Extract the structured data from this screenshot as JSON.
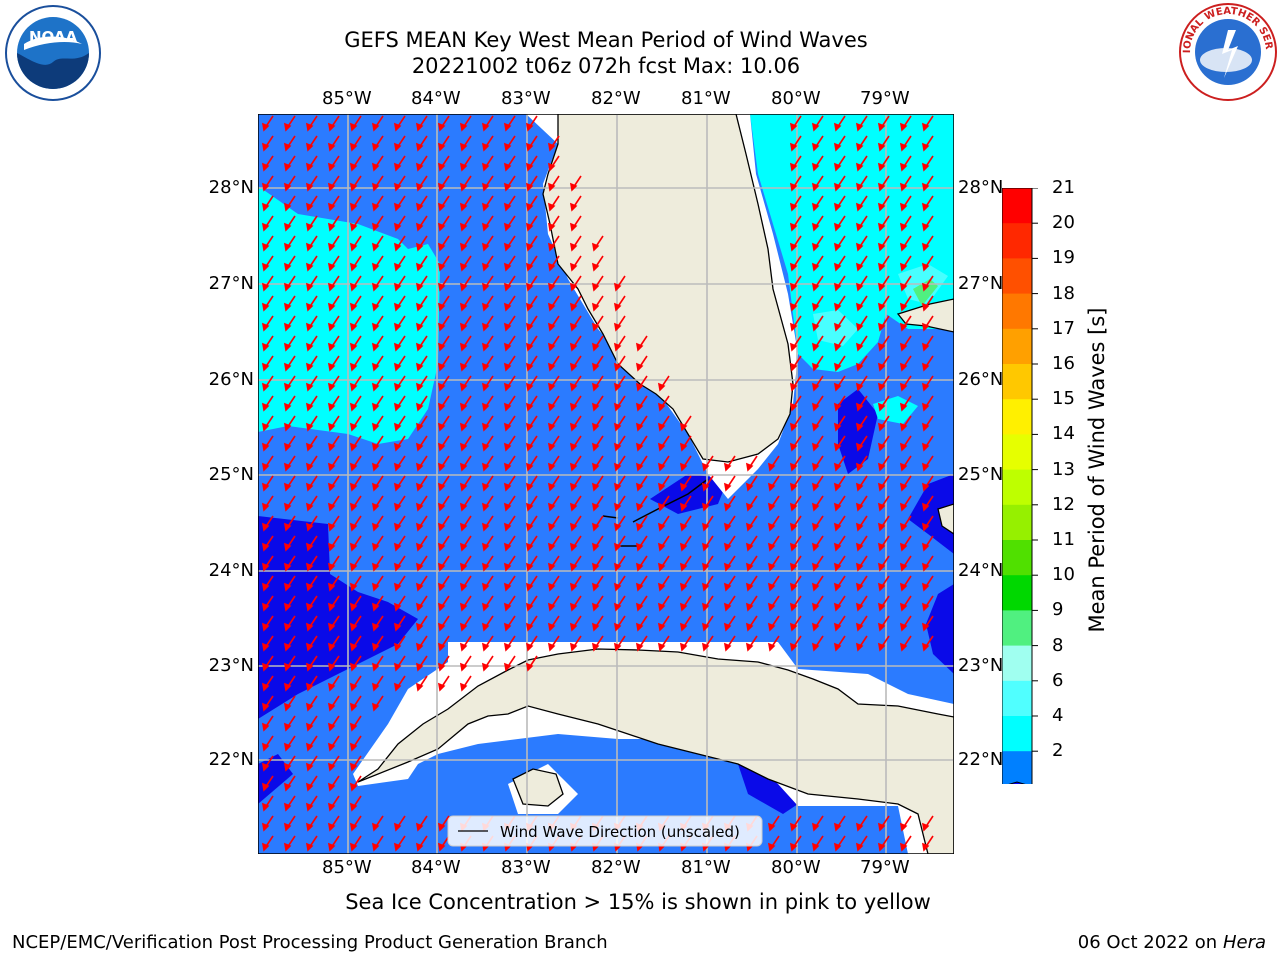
{
  "title": {
    "line1": "GEFS MEAN Key West Mean Period of Wind Waves",
    "line2": "20221002 t06z 072h fcst   Max: 10.06"
  },
  "map": {
    "lon_ticks": [
      "85°W",
      "84°W",
      "83°W",
      "82°W",
      "81°W",
      "80°W",
      "79°W"
    ],
    "lat_ticks": [
      "28°N",
      "27°N",
      "26°N",
      "25°N",
      "24°N",
      "23°N",
      "22°N"
    ],
    "legend_label": "Wind Wave Direction (unscaled)",
    "colors": {
      "ocean_2_4": "#2b7bff",
      "ocean_lt2": "#0a0ae8",
      "ocean_4_6": "#00ffff",
      "land": "#eeecdc",
      "arrow": "#ff0000",
      "grid": "#bbbbbb"
    }
  },
  "colorbar": {
    "title": "Mean Period of Wind Waves [s]",
    "ticks": [
      "21",
      "20",
      "19",
      "18",
      "17",
      "16",
      "15",
      "14",
      "13",
      "12",
      "11",
      "10",
      "9",
      "8",
      "6",
      "4",
      "2"
    ],
    "colors": [
      "#ff0000",
      "#ff2800",
      "#ff5000",
      "#ff7800",
      "#ffa000",
      "#ffc800",
      "#fff000",
      "#e6ff00",
      "#beff00",
      "#96f000",
      "#50e000",
      "#00d800",
      "#50f080",
      "#a0fff0",
      "#50ffff",
      "#00ffff",
      "#0080ff"
    ]
  },
  "note": "Sea Ice Concentration > 15% is shown in pink to yellow",
  "footer": {
    "left": "NCEP/EMC/Verification Post Processing Product Generation Branch",
    "date": "06 Oct 2022 on ",
    "host": "Hera"
  },
  "logos": {
    "left": "NOAA",
    "right_text": "NATIONAL WEATHER SERVICE"
  }
}
